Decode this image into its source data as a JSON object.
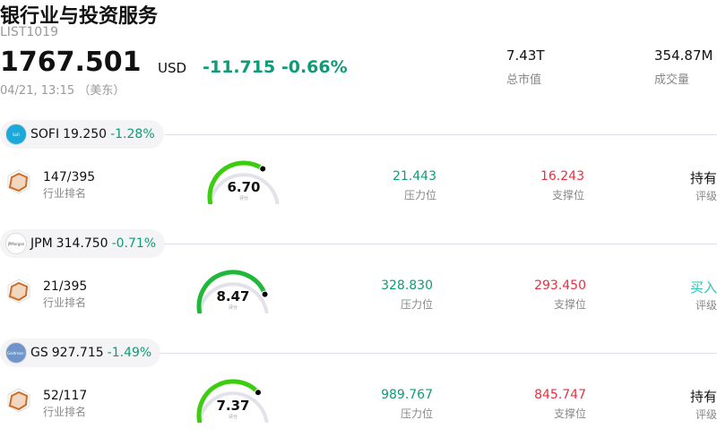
{
  "header": {
    "title": "银行业与投资服务",
    "code": "LIST1019",
    "price": "1767.501",
    "currency": "USD",
    "change": "-11.715",
    "change_pct": "-0.66%",
    "time": "04/21, 13:15 （美东）",
    "stats": [
      {
        "value": "7.43T",
        "label": "总市值"
      },
      {
        "value": "354.87M",
        "label": "成交量"
      }
    ]
  },
  "labels": {
    "rank": "行业排名",
    "resistance": "压力位",
    "support": "支撑位",
    "rating": "评级",
    "score": "评分"
  },
  "colors": {
    "up": "#0e9b78",
    "down": "#e8303f",
    "buy": "#2ec4b6"
  },
  "stocks": [
    {
      "ticker": "SOFI",
      "price": "19.250",
      "change_pct": "-1.28%",
      "logo_text": "SoFi",
      "logo_color": "#1aa9d8",
      "rank": "147/395",
      "score": "6.70",
      "score_value": 6.7,
      "gauge_color": "#3ccc10",
      "resistance": "21.443",
      "support": "16.243",
      "rating": "持有",
      "rating_color": "#111"
    },
    {
      "ticker": "JPM",
      "price": "314.750",
      "change_pct": "-0.71%",
      "logo_text": "JPMorgan",
      "logo_color": "#ffffff",
      "rank": "21/395",
      "score": "8.47",
      "score_value": 8.47,
      "gauge_color": "#1fb83a",
      "resistance": "328.830",
      "support": "293.450",
      "rating": "买入",
      "rating_color": "#2ec4b6"
    },
    {
      "ticker": "GS",
      "price": "927.715",
      "change_pct": "-1.49%",
      "logo_text": "Goldman Sachs",
      "logo_color": "#6f95c8",
      "rank": "52/117",
      "score": "7.37",
      "score_value": 7.37,
      "gauge_color": "#3ccc10",
      "resistance": "989.767",
      "support": "845.747",
      "rating": "持有",
      "rating_color": "#111"
    }
  ]
}
